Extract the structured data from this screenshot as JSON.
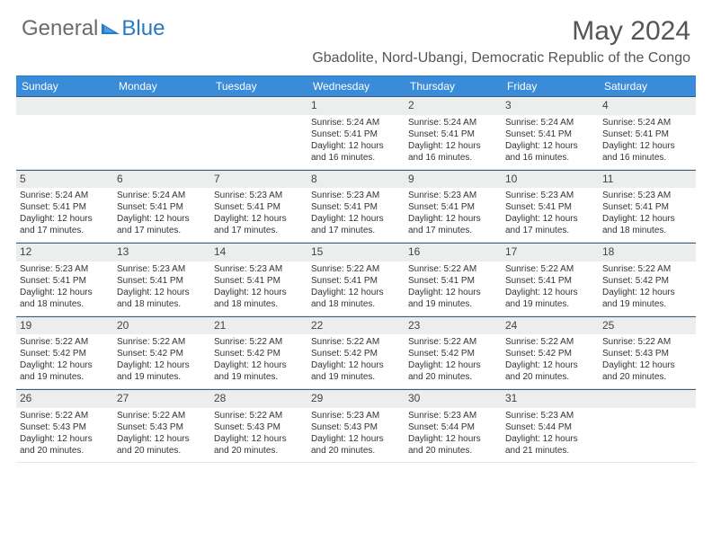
{
  "brand": {
    "part1": "General",
    "part2": "Blue"
  },
  "title": "May 2024",
  "subtitle": "Gbadolite, Nord-Ubangi, Democratic Republic of the Congo",
  "colors": {
    "header_bg": "#3a8bd8",
    "header_border": "#2a79c3",
    "daynum_bg": "#eceded",
    "daynum_border": "#3a5a78",
    "text": "#333333",
    "title_color": "#555555",
    "brand_gray": "#6b6b6b",
    "brand_blue": "#2a79c3"
  },
  "days_of_week": [
    "Sunday",
    "Monday",
    "Tuesday",
    "Wednesday",
    "Thursday",
    "Friday",
    "Saturday"
  ],
  "weeks": [
    [
      {
        "n": "",
        "sr": "",
        "ss": "",
        "dl": ""
      },
      {
        "n": "",
        "sr": "",
        "ss": "",
        "dl": ""
      },
      {
        "n": "",
        "sr": "",
        "ss": "",
        "dl": ""
      },
      {
        "n": "1",
        "sr": "5:24 AM",
        "ss": "5:41 PM",
        "dl": "12 hours and 16 minutes."
      },
      {
        "n": "2",
        "sr": "5:24 AM",
        "ss": "5:41 PM",
        "dl": "12 hours and 16 minutes."
      },
      {
        "n": "3",
        "sr": "5:24 AM",
        "ss": "5:41 PM",
        "dl": "12 hours and 16 minutes."
      },
      {
        "n": "4",
        "sr": "5:24 AM",
        "ss": "5:41 PM",
        "dl": "12 hours and 16 minutes."
      }
    ],
    [
      {
        "n": "5",
        "sr": "5:24 AM",
        "ss": "5:41 PM",
        "dl": "12 hours and 17 minutes."
      },
      {
        "n": "6",
        "sr": "5:24 AM",
        "ss": "5:41 PM",
        "dl": "12 hours and 17 minutes."
      },
      {
        "n": "7",
        "sr": "5:23 AM",
        "ss": "5:41 PM",
        "dl": "12 hours and 17 minutes."
      },
      {
        "n": "8",
        "sr": "5:23 AM",
        "ss": "5:41 PM",
        "dl": "12 hours and 17 minutes."
      },
      {
        "n": "9",
        "sr": "5:23 AM",
        "ss": "5:41 PM",
        "dl": "12 hours and 17 minutes."
      },
      {
        "n": "10",
        "sr": "5:23 AM",
        "ss": "5:41 PM",
        "dl": "12 hours and 17 minutes."
      },
      {
        "n": "11",
        "sr": "5:23 AM",
        "ss": "5:41 PM",
        "dl": "12 hours and 18 minutes."
      }
    ],
    [
      {
        "n": "12",
        "sr": "5:23 AM",
        "ss": "5:41 PM",
        "dl": "12 hours and 18 minutes."
      },
      {
        "n": "13",
        "sr": "5:23 AM",
        "ss": "5:41 PM",
        "dl": "12 hours and 18 minutes."
      },
      {
        "n": "14",
        "sr": "5:23 AM",
        "ss": "5:41 PM",
        "dl": "12 hours and 18 minutes."
      },
      {
        "n": "15",
        "sr": "5:22 AM",
        "ss": "5:41 PM",
        "dl": "12 hours and 18 minutes."
      },
      {
        "n": "16",
        "sr": "5:22 AM",
        "ss": "5:41 PM",
        "dl": "12 hours and 19 minutes."
      },
      {
        "n": "17",
        "sr": "5:22 AM",
        "ss": "5:41 PM",
        "dl": "12 hours and 19 minutes."
      },
      {
        "n": "18",
        "sr": "5:22 AM",
        "ss": "5:42 PM",
        "dl": "12 hours and 19 minutes."
      }
    ],
    [
      {
        "n": "19",
        "sr": "5:22 AM",
        "ss": "5:42 PM",
        "dl": "12 hours and 19 minutes."
      },
      {
        "n": "20",
        "sr": "5:22 AM",
        "ss": "5:42 PM",
        "dl": "12 hours and 19 minutes."
      },
      {
        "n": "21",
        "sr": "5:22 AM",
        "ss": "5:42 PM",
        "dl": "12 hours and 19 minutes."
      },
      {
        "n": "22",
        "sr": "5:22 AM",
        "ss": "5:42 PM",
        "dl": "12 hours and 19 minutes."
      },
      {
        "n": "23",
        "sr": "5:22 AM",
        "ss": "5:42 PM",
        "dl": "12 hours and 20 minutes."
      },
      {
        "n": "24",
        "sr": "5:22 AM",
        "ss": "5:42 PM",
        "dl": "12 hours and 20 minutes."
      },
      {
        "n": "25",
        "sr": "5:22 AM",
        "ss": "5:43 PM",
        "dl": "12 hours and 20 minutes."
      }
    ],
    [
      {
        "n": "26",
        "sr": "5:22 AM",
        "ss": "5:43 PM",
        "dl": "12 hours and 20 minutes."
      },
      {
        "n": "27",
        "sr": "5:22 AM",
        "ss": "5:43 PM",
        "dl": "12 hours and 20 minutes."
      },
      {
        "n": "28",
        "sr": "5:22 AM",
        "ss": "5:43 PM",
        "dl": "12 hours and 20 minutes."
      },
      {
        "n": "29",
        "sr": "5:23 AM",
        "ss": "5:43 PM",
        "dl": "12 hours and 20 minutes."
      },
      {
        "n": "30",
        "sr": "5:23 AM",
        "ss": "5:44 PM",
        "dl": "12 hours and 20 minutes."
      },
      {
        "n": "31",
        "sr": "5:23 AM",
        "ss": "5:44 PM",
        "dl": "12 hours and 21 minutes."
      },
      {
        "n": "",
        "sr": "",
        "ss": "",
        "dl": ""
      }
    ]
  ],
  "labels": {
    "sunrise": "Sunrise: ",
    "sunset": "Sunset: ",
    "daylight": "Daylight: "
  }
}
